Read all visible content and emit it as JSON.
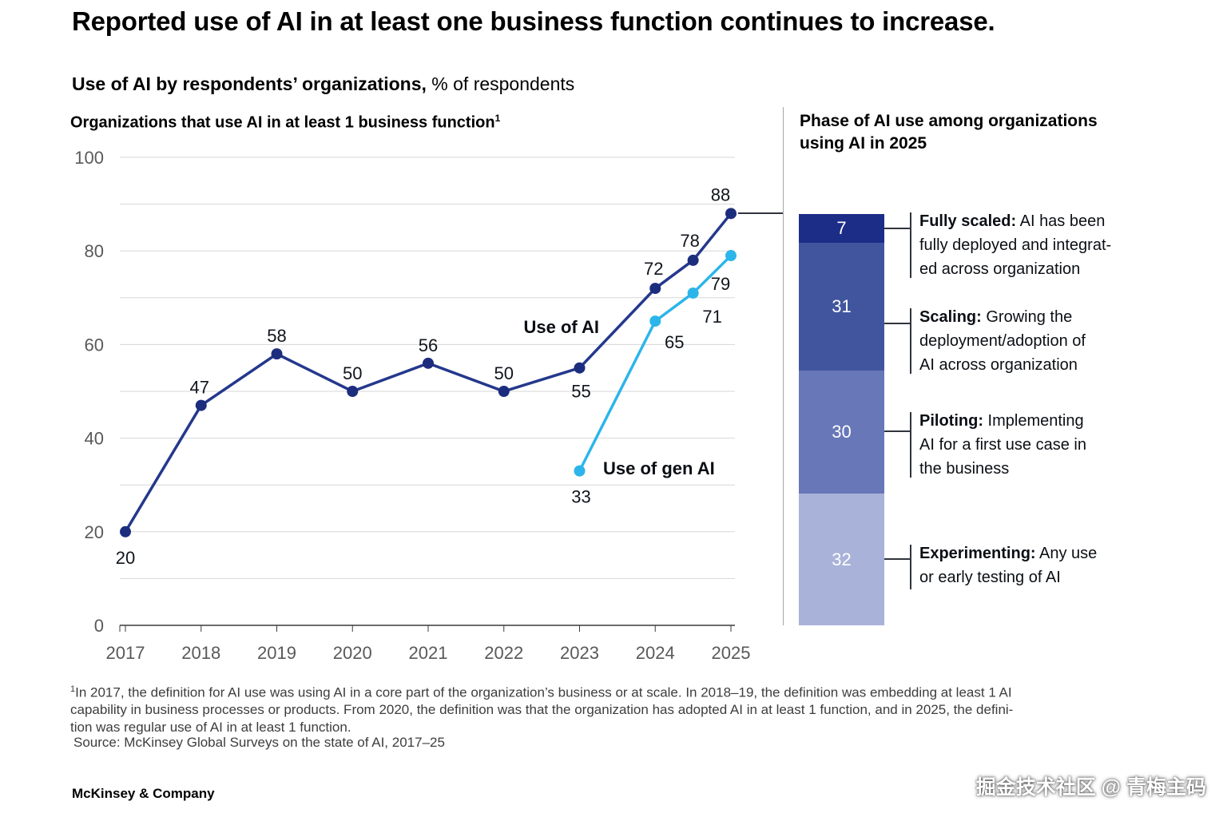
{
  "header": {
    "title": "Reported use of AI in at least one business function continues to increase.",
    "subtitle_bold": "Use of AI by respondents’ organizations,",
    "subtitle_rest": " % of respondents"
  },
  "chart_data": [
    {
      "type": "line",
      "title": "Organizations that use AI in at least 1 business function",
      "footnote_marker": "1",
      "x": [
        2017,
        2018,
        2019,
        2020,
        2021,
        2022,
        2023,
        2024,
        2024.5,
        2025
      ],
      "xticks": [
        2017,
        2018,
        2019,
        2020,
        2021,
        2022,
        2023,
        2024,
        2025
      ],
      "yticks": [
        0,
        20,
        40,
        60,
        80,
        100
      ],
      "ylim": [
        0,
        100
      ],
      "grid_step": 10,
      "legend_position": "inline-annotations",
      "series": [
        {
          "name": "Use of AI",
          "color": "#24388c",
          "dot_color": "#1c2d7e",
          "values": [
            20,
            47,
            58,
            50,
            56,
            50,
            55,
            72,
            78,
            88
          ]
        },
        {
          "name": "Use of gen AI",
          "color": "#2cb5ea",
          "dot_color": "#2cb5ea",
          "values": [
            null,
            null,
            null,
            null,
            null,
            null,
            33,
            65,
            71,
            79
          ]
        }
      ]
    },
    {
      "type": "bar",
      "stacked": true,
      "total": 100,
      "title": "Phase of AI use among organizations\nusing AI in 2025",
      "segments": [
        {
          "label": "Fully scaled",
          "value": 7,
          "color": "#1c2d88",
          "term": "Fully scaled:",
          "text": " AI has been\nfully deployed and integrat-\ned across organization"
        },
        {
          "label": "Scaling",
          "value": 31,
          "color": "#41559f",
          "term": "Scaling:",
          "text": " Growing the\ndeployment/adoption of\nAI across organization"
        },
        {
          "label": "Piloting",
          "value": 30,
          "color": "#6777b8",
          "term": "Piloting:",
          "text": " Implementing\nAI for a first use case in\nthe business"
        },
        {
          "label": "Experimenting",
          "value": 32,
          "color": "#a9b2d8",
          "term": "Experimenting:",
          "text": " Any use\nor early testing of AI"
        }
      ]
    }
  ],
  "footnote": {
    "marker": "1",
    "text": "In 2017, the definition for AI use was using AI in a core part of the organization’s business or at scale. In 2018–19, the definition was embedding at least 1 AI\ncapability in business processes or products. From 2020, the definition was that the organization has adopted AI in at least 1 function, and in 2025, the defini-\ntion was regular use of AI in at least 1 function.",
    "source": "Source: McKinsey Global Surveys on the state of AI, 2017–25"
  },
  "footer": {
    "brand": "McKinsey & Company",
    "watermark": "掘金技术社区 @ 青梅主码"
  }
}
